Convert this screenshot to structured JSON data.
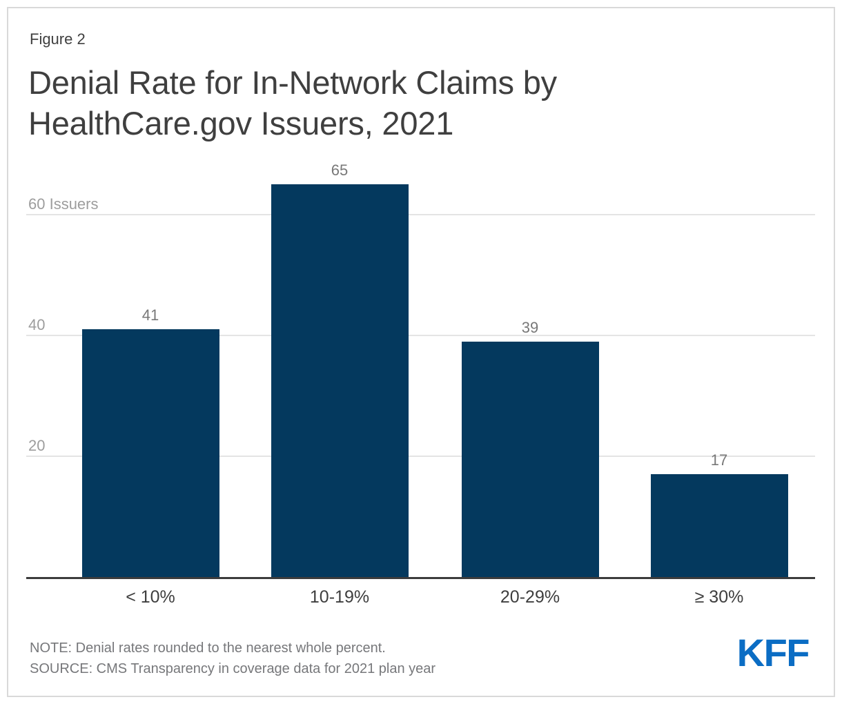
{
  "figure_label": "Figure 2",
  "title_line1": "Denial Rate for In-Network Claims by",
  "title_line2": "HealthCare.gov Issuers, 2021",
  "chart_data": {
    "type": "bar",
    "title": "Denial Rate for In-Network Claims by HealthCare.gov Issuers, 2021",
    "categories": [
      "< 10%",
      "10-19%",
      "20-29%",
      "≥ 30%"
    ],
    "values": [
      41,
      65,
      39,
      17
    ],
    "value_labels": [
      "41",
      "65",
      "39",
      "17"
    ],
    "xlabel": "",
    "ylabel": "Issuers",
    "ylim": [
      0,
      70
    ],
    "yticks": [
      {
        "value": 20,
        "label": "20"
      },
      {
        "value": 40,
        "label": "40"
      },
      {
        "value": 60,
        "label": "60 Issuers"
      }
    ],
    "grid": true,
    "legend": false,
    "bar_color": "#04395e",
    "gridline_color": "#e4e4e4",
    "axis_color": "#3c3c3c"
  },
  "footer": {
    "note": "NOTE: Denial rates rounded to the nearest whole percent.",
    "source": "SOURCE: CMS Transparency in coverage data for 2021 plan year",
    "logo_text": "KFF",
    "logo_color": "#0b6dc4"
  }
}
